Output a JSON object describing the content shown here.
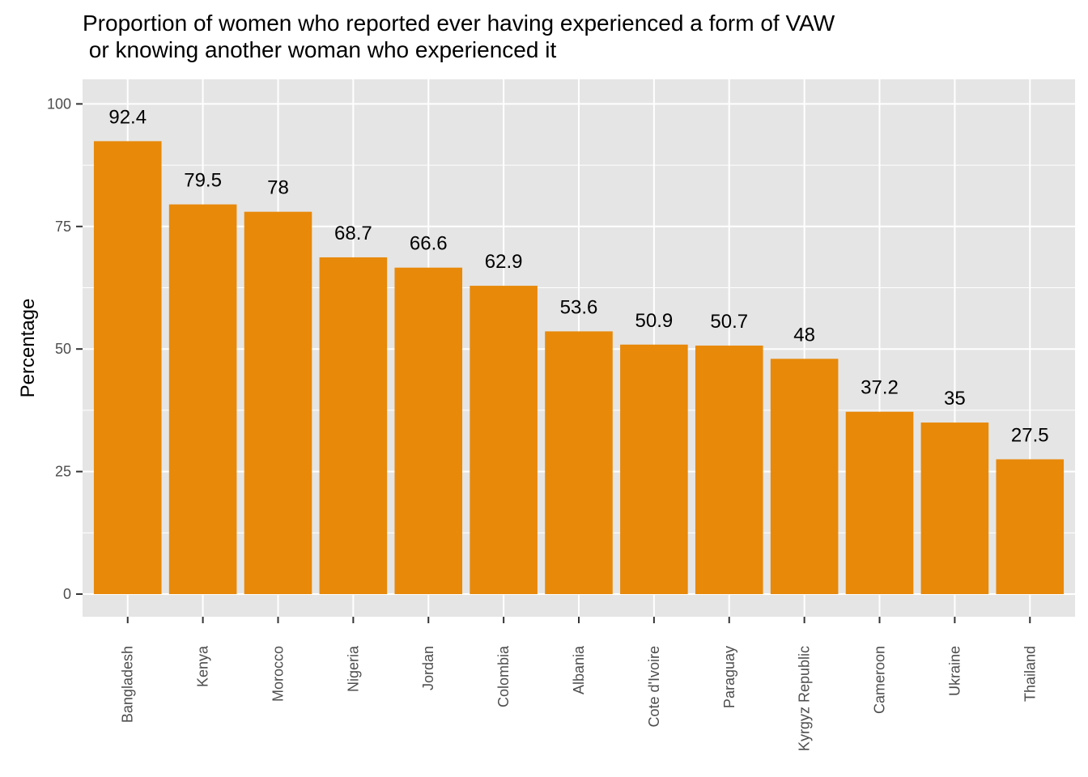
{
  "chart_data": {
    "type": "bar",
    "title": "Proportion of women who reported ever having experienced a form of VAW\n or knowing another woman who experienced it",
    "xlabel": "",
    "ylabel": "Percentage",
    "categories": [
      "Bangladesh",
      "Kenya",
      "Morocco",
      "Nigeria",
      "Jordan",
      "Colombia",
      "Albania",
      "Cote d'Ivoire",
      "Paraguay",
      "Kyrgyz Republic",
      "Cameroon",
      "Ukraine",
      "Thailand"
    ],
    "values": [
      92.4,
      79.5,
      78,
      68.7,
      66.6,
      62.9,
      53.6,
      50.9,
      50.7,
      48,
      37.2,
      35,
      27.5
    ],
    "data_labels": [
      "92.4",
      "79.5",
      "78",
      "68.7",
      "66.6",
      "62.9",
      "53.6",
      "50.9",
      "50.7",
      "48",
      "37.2",
      "35",
      "27.5"
    ],
    "yticks": [
      0,
      25,
      50,
      75,
      100
    ],
    "ylim": [
      -4.62,
      105.02
    ],
    "grid": true,
    "bar_color": "#E8890A",
    "panel_color": "#E5E5E5",
    "grid_color": "#FFFFFF"
  }
}
